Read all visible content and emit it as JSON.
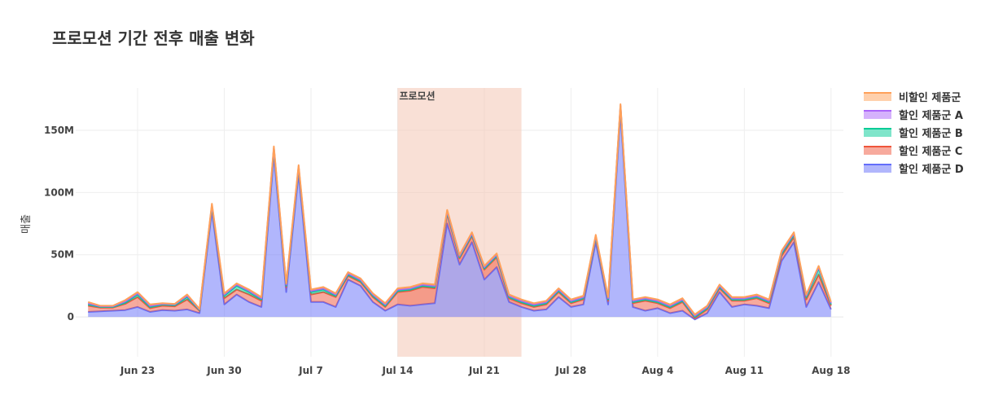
{
  "chart_data": {
    "type": "area",
    "title": "프로모션 기간 전후 매출 변화",
    "xlabel": "",
    "ylabel": "매출",
    "x_range": [
      "2025-06-18",
      "2025-08-19"
    ],
    "ylim": [
      -32000000,
      184000000
    ],
    "y_ticks": [
      0,
      50000000,
      100000000,
      150000000
    ],
    "y_tick_labels": [
      "0",
      "50M",
      "100M",
      "150M"
    ],
    "x_ticks": [
      "2025-06-23",
      "2025-06-30",
      "2025-07-07",
      "2025-07-14",
      "2025-07-21",
      "2025-07-28",
      "2025-08-04",
      "2025-08-11",
      "2025-08-18"
    ],
    "x_tick_labels": [
      "Jun 23",
      "Jun 30",
      "Jul 7",
      "Jul 14",
      "Jul 21",
      "Jul 28",
      "Aug 4",
      "Aug 11",
      "Aug 18"
    ],
    "grid": true,
    "legend_position": "top-right",
    "promotion": {
      "label": "프로모션",
      "start": "2025-07-14",
      "end": "2025-07-24",
      "color": "#f4c7b4"
    },
    "x": [
      "2025-06-19",
      "2025-06-20",
      "2025-06-21",
      "2025-06-22",
      "2025-06-23",
      "2025-06-24",
      "2025-06-25",
      "2025-06-26",
      "2025-06-27",
      "2025-06-28",
      "2025-06-29",
      "2025-06-30",
      "2025-07-01",
      "2025-07-02",
      "2025-07-03",
      "2025-07-04",
      "2025-07-05",
      "2025-07-06",
      "2025-07-07",
      "2025-07-08",
      "2025-07-09",
      "2025-07-10",
      "2025-07-11",
      "2025-07-12",
      "2025-07-13",
      "2025-07-14",
      "2025-07-15",
      "2025-07-16",
      "2025-07-17",
      "2025-07-18",
      "2025-07-19",
      "2025-07-20",
      "2025-07-21",
      "2025-07-22",
      "2025-07-23",
      "2025-07-24",
      "2025-07-25",
      "2025-07-26",
      "2025-07-27",
      "2025-07-28",
      "2025-07-29",
      "2025-07-30",
      "2025-07-31",
      "2025-08-01",
      "2025-08-02",
      "2025-08-03",
      "2025-08-04",
      "2025-08-05",
      "2025-08-06",
      "2025-08-07",
      "2025-08-08",
      "2025-08-09",
      "2025-08-10",
      "2025-08-11",
      "2025-08-12",
      "2025-08-13",
      "2025-08-14",
      "2025-08-15",
      "2025-08-16",
      "2025-08-17",
      "2025-08-18"
    ],
    "series": [
      {
        "name": "할인 제품군 D",
        "color": "#636efa",
        "values": [
          4000000,
          4500000,
          5000000,
          5500000,
          8000000,
          4000000,
          5500000,
          5000000,
          6000000,
          3000000,
          85000000,
          10000000,
          18000000,
          12000000,
          8000000,
          130000000,
          20000000,
          115000000,
          12000000,
          12000000,
          8000000,
          30000000,
          25000000,
          12000000,
          5000000,
          10000000,
          9000000,
          10000000,
          11000000,
          75000000,
          42000000,
          60000000,
          30000000,
          40000000,
          12000000,
          8000000,
          5000000,
          6000000,
          16000000,
          8000000,
          10000000,
          60000000,
          10000000,
          165000000,
          8000000,
          5000000,
          7000000,
          3000000,
          5000000,
          -2000000,
          3000000,
          20000000,
          8000000,
          10000000,
          9000000,
          7000000,
          45000000,
          60000000,
          8000000,
          28000000,
          6000000
        ]
      },
      {
        "name": "할인 제품군 C",
        "color": "#ef553b",
        "values": [
          5000000,
          3000000,
          2500000,
          5000000,
          8000000,
          3000000,
          3500000,
          3500000,
          8000000,
          2000000,
          3000000,
          5000000,
          4000000,
          6000000,
          5000000,
          4000000,
          4000000,
          4000000,
          6000000,
          8000000,
          8000000,
          3000000,
          3000000,
          4000000,
          3000000,
          10000000,
          12000000,
          14000000,
          12000000,
          8000000,
          5000000,
          5000000,
          8000000,
          8000000,
          3000000,
          3000000,
          3000000,
          4000000,
          4000000,
          3000000,
          4000000,
          3000000,
          3000000,
          3000000,
          3000000,
          8000000,
          4000000,
          4000000,
          7000000,
          1000000,
          3000000,
          3000000,
          5000000,
          3000000,
          6000000,
          4000000,
          4000000,
          4000000,
          6000000,
          6000000,
          3000000
        ]
      },
      {
        "name": "할인 제품군 B",
        "color": "#00cc96",
        "values": [
          1000000,
          500000,
          500000,
          1000000,
          2000000,
          1000000,
          1000000,
          1000000,
          2000000,
          500000,
          1000000,
          2000000,
          3000000,
          2000000,
          1000000,
          1000000,
          1000000,
          1000000,
          2000000,
          2000000,
          1000000,
          1000000,
          1000000,
          1000000,
          1000000,
          1000000,
          1000000,
          1000000,
          1000000,
          1000000,
          1000000,
          1000000,
          1000000,
          1000000,
          1000000,
          1000000,
          1000000,
          1000000,
          1000000,
          1000000,
          1000000,
          1000000,
          1000000,
          1000000,
          1000000,
          1000000,
          1000000,
          1000000,
          1000000,
          1000000,
          1000000,
          1000000,
          1000000,
          1000000,
          1000000,
          1000000,
          2000000,
          2000000,
          2000000,
          5000000,
          1000000
        ]
      },
      {
        "name": "할인 제품군 A",
        "color": "#ab63fa",
        "values": [
          1000000,
          500000,
          500000,
          1000000,
          1000000,
          1000000,
          500000,
          500000,
          1000000,
          500000,
          1000000,
          1000000,
          1000000,
          1000000,
          1000000,
          1000000,
          1000000,
          1000000,
          1000000,
          1000000,
          1000000,
          1000000,
          1000000,
          1000000,
          1000000,
          1000000,
          1000000,
          1000000,
          1000000,
          1000000,
          1000000,
          1000000,
          1000000,
          1000000,
          1000000,
          1000000,
          1000000,
          1000000,
          1000000,
          1000000,
          1000000,
          1000000,
          1000000,
          1000000,
          1000000,
          1000000,
          1000000,
          1000000,
          1000000,
          1000000,
          1000000,
          1000000,
          1000000,
          1000000,
          1000000,
          1000000,
          1000000,
          1000000,
          1000000,
          1000000,
          1000000
        ]
      },
      {
        "name": "비할인 제품군",
        "color": "#ffa15a",
        "values": [
          1000000,
          500000,
          500000,
          1000000,
          1000000,
          1000000,
          500000,
          500000,
          1000000,
          500000,
          1000000,
          1000000,
          1000000,
          1000000,
          1000000,
          1000000,
          1000000,
          1000000,
          1000000,
          1000000,
          1000000,
          1000000,
          1000000,
          1000000,
          1000000,
          1000000,
          1000000,
          1000000,
          1000000,
          1000000,
          1000000,
          1000000,
          1000000,
          1000000,
          1000000,
          1000000,
          1000000,
          1000000,
          1000000,
          1000000,
          1000000,
          1000000,
          1000000,
          1000000,
          1000000,
          1000000,
          1000000,
          1000000,
          1000000,
          1000000,
          1000000,
          1000000,
          1000000,
          1000000,
          1000000,
          1000000,
          1000000,
          1000000,
          1000000,
          1000000,
          1000000
        ]
      }
    ],
    "legend_order": [
      "비할인 제품군",
      "할인 제품군 A",
      "할인 제품군 B",
      "할인 제품군 C",
      "할인 제품군 D"
    ]
  }
}
